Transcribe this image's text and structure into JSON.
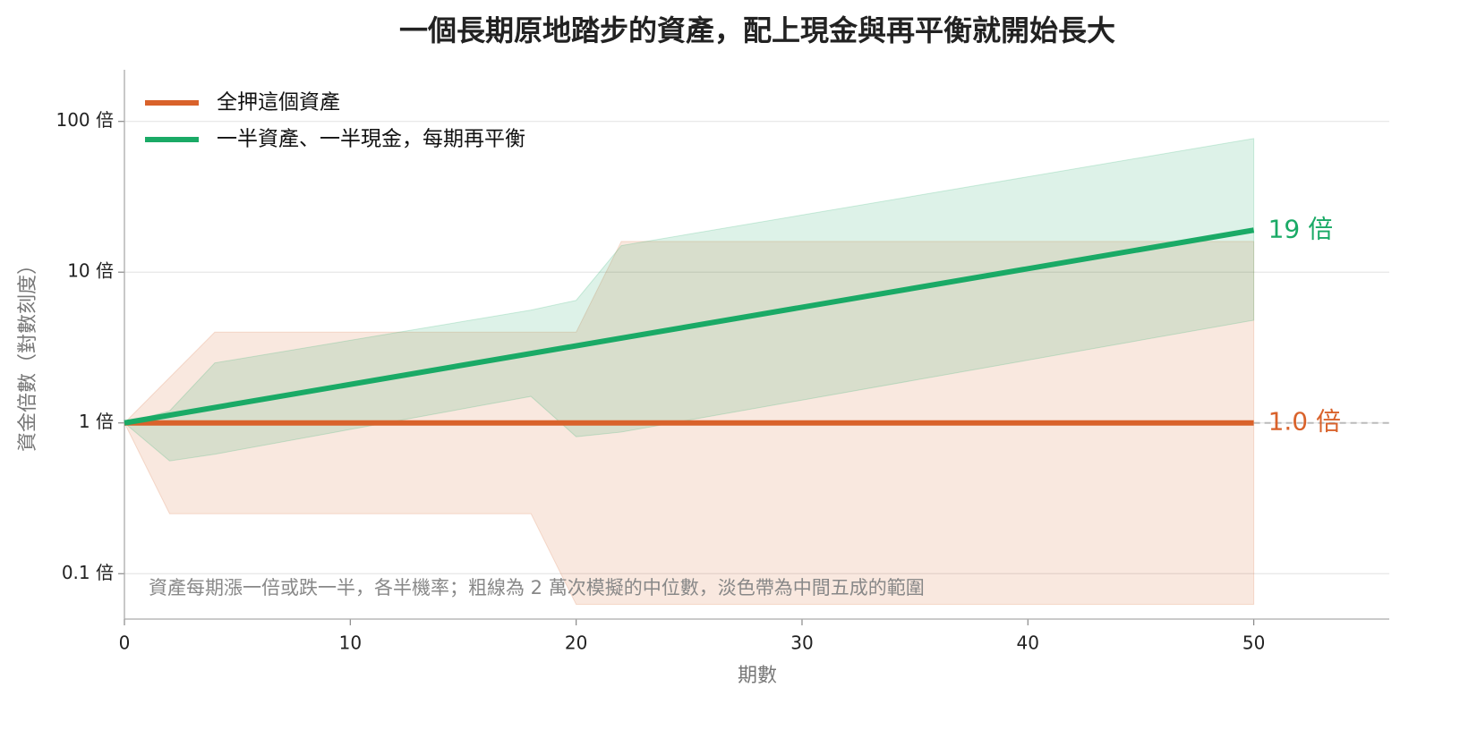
{
  "chart_data": {
    "type": "line",
    "title": "一個長期原地踏步的資產，配上現金與再平衡就開始長大",
    "xlabel": "期數",
    "ylabel": "資金倍數（對數刻度）",
    "note": "資產每期漲一倍或跌一半，各半機率；粗線為 2 萬次模擬的中位數，淡色帶為中間五成的範圍",
    "xlim": [
      0,
      56
    ],
    "xticks": [
      0,
      10,
      20,
      30,
      40,
      50
    ],
    "ylim": [
      0.05,
      220
    ],
    "yscale": "log",
    "yticks": [
      {
        "value": 0.1,
        "label": "0.1 倍"
      },
      {
        "value": 1,
        "label": "1 倍"
      },
      {
        "value": 10,
        "label": "10 倍"
      },
      {
        "value": 100,
        "label": "100 倍"
      }
    ],
    "grid": true,
    "legend": "upper left",
    "hline": 1,
    "series": [
      {
        "name": "全押這個資產",
        "color": "#d9622b",
        "x": [
          0,
          50
        ],
        "values": [
          1,
          1
        ],
        "value_labels": [
          null,
          "1.0 倍"
        ],
        "band": {
          "x": [
            0,
            2,
            4,
            18,
            20,
            22,
            50
          ],
          "lower": [
            1,
            0.25,
            0.25,
            0.25,
            0.0625,
            0.0625,
            0.0625
          ],
          "upper": [
            1,
            2,
            4,
            4,
            4,
            16,
            16
          ]
        }
      },
      {
        "name": "一半資產、一半現金，每期再平衡",
        "color": "#1aaa66",
        "x": [
          0,
          50
        ],
        "values": [
          1,
          19
        ],
        "value_labels": [
          null,
          "19 倍"
        ],
        "band": {
          "x": [
            0,
            2,
            4,
            18,
            20,
            22,
            50
          ],
          "lower": [
            1,
            0.56,
            0.62,
            1.5,
            0.81,
            0.87,
            4.8
          ],
          "upper": [
            1,
            1.2,
            2.5,
            5.6,
            6.5,
            15,
            77
          ]
        }
      }
    ]
  }
}
